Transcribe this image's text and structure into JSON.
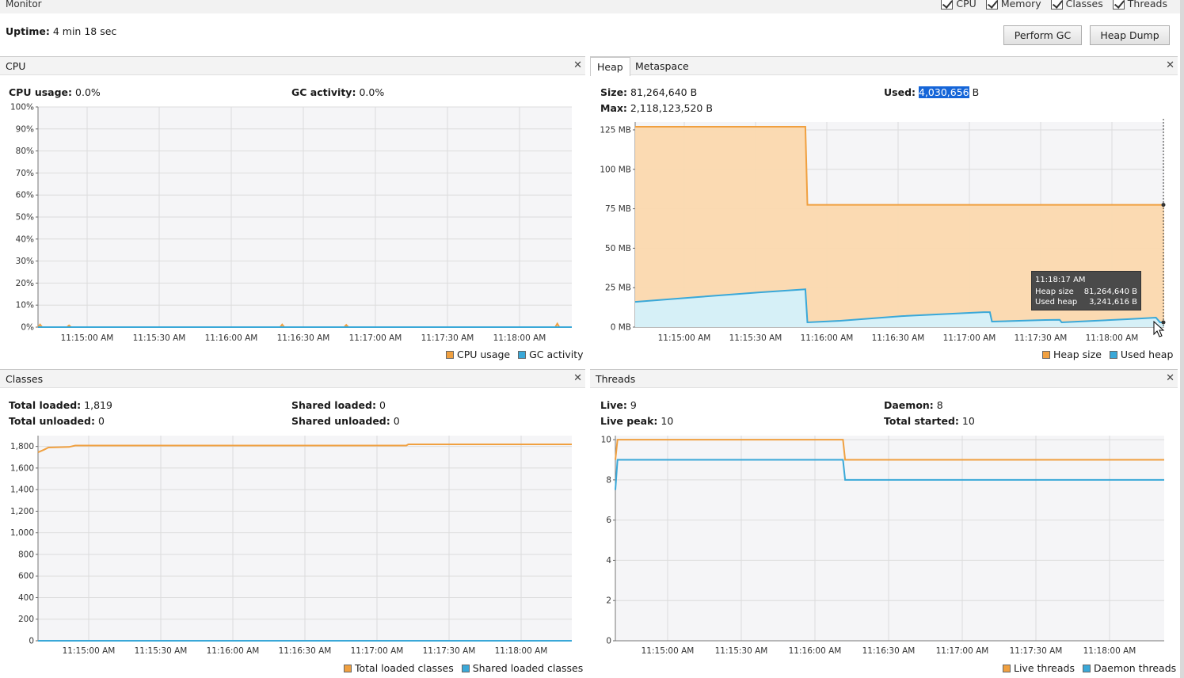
{
  "monitor": {
    "title": "Monitor",
    "checkboxes": [
      {
        "label": "CPU",
        "checked": true
      },
      {
        "label": "Memory",
        "checked": true
      },
      {
        "label": "Classes",
        "checked": true
      },
      {
        "label": "Threads",
        "checked": true
      }
    ],
    "uptime_label": "Uptime:",
    "uptime_value": "4 min 18 sec",
    "perform_gc": "Perform GC",
    "heap_dump": "Heap Dump"
  },
  "cpu": {
    "title": "CPU",
    "usage_label": "CPU usage:",
    "usage_value": "0.0%",
    "gc_label": "GC activity:",
    "gc_value": "0.0%"
  },
  "heap": {
    "tab_heap": "Heap",
    "tab_metaspace": "Metaspace",
    "size_label": "Size:",
    "size_value": "81,264,640 B",
    "max_label": "Max:",
    "max_value": "2,118,123,520 B",
    "used_label": "Used:",
    "used_value_selected": "4,030,656",
    "used_value_unit": " B",
    "tooltip": {
      "time": "11:18:17 AM",
      "heap_size_label": "Heap size",
      "heap_size_value": "81,264,640 B",
      "used_heap_label": "Used heap",
      "used_heap_value": "3,241,616 B"
    }
  },
  "classes": {
    "title": "Classes",
    "total_loaded_label": "Total loaded:",
    "total_loaded_value": "1,819",
    "total_unloaded_label": "Total unloaded:",
    "total_unloaded_value": "0",
    "shared_loaded_label": "Shared loaded:",
    "shared_loaded_value": "0",
    "shared_unloaded_label": "Shared unloaded:",
    "shared_unloaded_value": "0"
  },
  "threads": {
    "title": "Threads",
    "live_label": "Live:",
    "live_value": "9",
    "live_peak_label": "Live peak:",
    "live_peak_value": "10",
    "daemon_label": "Daemon:",
    "daemon_value": "8",
    "total_started_label": "Total started:",
    "total_started_value": "10"
  },
  "colors": {
    "orange": "#f0a040",
    "blue": "#3aa8d8",
    "orange_fill": "#fbd8ae",
    "blue_fill": "#d4f1fb",
    "plot_bg": "#f5f5f7",
    "grid": "#dcdcdc"
  },
  "chart_data": [
    {
      "id": "cpu",
      "type": "line",
      "x_ticks": [
        "11:15:00 AM",
        "11:15:30 AM",
        "11:16:00 AM",
        "11:16:30 AM",
        "11:17:00 AM",
        "11:17:30 AM",
        "11:18:00 AM"
      ],
      "y_ticks": [
        "0%",
        "10%",
        "20%",
        "30%",
        "40%",
        "50%",
        "60%",
        "70%",
        "80%",
        "90%",
        "100%"
      ],
      "ylim": [
        0,
        100
      ],
      "x_range_sec": [
        0,
        258
      ],
      "series": [
        {
          "name": "CPU usage",
          "color": "orange",
          "points": [
            [
              0,
              0
            ],
            [
              1,
              1.2
            ],
            [
              2,
              0
            ],
            [
              14,
              0
            ],
            [
              15,
              0.8
            ],
            [
              16,
              0
            ],
            [
              117,
              0
            ],
            [
              118,
              1.2
            ],
            [
              119,
              0
            ],
            [
              148,
              0
            ],
            [
              149,
              1.0
            ],
            [
              150,
              0
            ],
            [
              250,
              0
            ],
            [
              251,
              1.6
            ],
            [
              252,
              0
            ],
            [
              258,
              0
            ]
          ]
        },
        {
          "name": "GC activity",
          "color": "blue",
          "points": [
            [
              0,
              0
            ],
            [
              258,
              0
            ]
          ]
        }
      ],
      "legend": [
        "CPU usage",
        "GC activity"
      ]
    },
    {
      "id": "heap",
      "type": "area",
      "x_ticks": [
        "11:15:00 AM",
        "11:15:30 AM",
        "11:16:00 AM",
        "11:16:30 AM",
        "11:17:00 AM",
        "11:17:30 AM",
        "11:18:00 AM"
      ],
      "y_ticks": [
        "0 MB",
        "25 MB",
        "50 MB",
        "75 MB",
        "100 MB",
        "125 MB"
      ],
      "ylim": [
        0,
        130
      ],
      "x_range_sec": [
        0,
        258
      ],
      "series": [
        {
          "name": "Heap size",
          "color": "orange",
          "points": [
            [
              0,
              127
            ],
            [
              83,
              127
            ],
            [
              84,
              77.5
            ],
            [
              258,
              77.5
            ]
          ]
        },
        {
          "name": "Used heap",
          "color": "blue",
          "points": [
            [
              0,
              16
            ],
            [
              10,
              17
            ],
            [
              30,
              19
            ],
            [
              60,
              22
            ],
            [
              83,
              24
            ],
            [
              84,
              3
            ],
            [
              100,
              4
            ],
            [
              130,
              7
            ],
            [
              170,
              9.5
            ],
            [
              173,
              9.5
            ],
            [
              174,
              3.5
            ],
            [
              200,
              4.5
            ],
            [
              207,
              4.6
            ],
            [
              208,
              3
            ],
            [
              240,
              5
            ],
            [
              254,
              6
            ],
            [
              256,
              3
            ],
            [
              258,
              3
            ]
          ]
        }
      ],
      "legend": [
        "Heap size",
        "Used heap"
      ]
    },
    {
      "id": "classes",
      "type": "line",
      "x_ticks": [
        "11:15:00 AM",
        "11:15:30 AM",
        "11:16:00 AM",
        "11:16:30 AM",
        "11:17:00 AM",
        "11:17:30 AM",
        "11:18:00 AM"
      ],
      "y_ticks": [
        "0",
        "200",
        "400",
        "600",
        "800",
        "1,000",
        "1,200",
        "1,400",
        "1,600",
        "1,800"
      ],
      "ylim": [
        0,
        1900
      ],
      "x_range_sec": [
        0,
        258
      ],
      "series": [
        {
          "name": "Total loaded classes",
          "color": "orange",
          "points": [
            [
              0,
              1745
            ],
            [
              3,
              1770
            ],
            [
              5,
              1790
            ],
            [
              15,
              1795
            ],
            [
              18,
              1808
            ],
            [
              178,
              1808
            ],
            [
              179,
              1819
            ],
            [
              258,
              1819
            ]
          ]
        },
        {
          "name": "Shared loaded classes",
          "color": "blue",
          "points": [
            [
              0,
              0
            ],
            [
              258,
              0
            ]
          ]
        }
      ],
      "legend": [
        "Total loaded classes",
        "Shared loaded classes"
      ]
    },
    {
      "id": "threads",
      "type": "line",
      "x_ticks": [
        "11:15:00 AM",
        "11:15:30 AM",
        "11:16:00 AM",
        "11:16:30 AM",
        "11:17:00 AM",
        "11:17:30 AM",
        "11:18:00 AM"
      ],
      "y_ticks": [
        "0",
        "2",
        "4",
        "6",
        "8",
        "10"
      ],
      "ylim": [
        0,
        10.2
      ],
      "x_range_sec": [
        0,
        258
      ],
      "series": [
        {
          "name": "Live threads",
          "color": "orange",
          "points": [
            [
              0,
              9
            ],
            [
              1,
              10
            ],
            [
              107,
              10
            ],
            [
              108,
              9
            ],
            [
              258,
              9
            ]
          ]
        },
        {
          "name": "Daemon threads",
          "color": "blue",
          "points": [
            [
              0,
              7.5
            ],
            [
              1,
              9
            ],
            [
              107,
              9
            ],
            [
              108,
              8
            ],
            [
              258,
              8
            ]
          ]
        }
      ],
      "legend": [
        "Live threads",
        "Daemon threads"
      ]
    }
  ]
}
